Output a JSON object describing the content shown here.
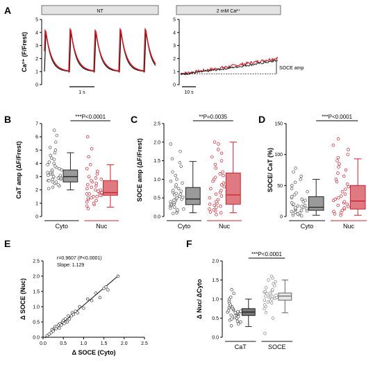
{
  "figure": {
    "panel_letters": [
      "A",
      "B",
      "C",
      "D",
      "E",
      "F"
    ]
  },
  "colors": {
    "cyto": "#666666",
    "cyto_fill": "#9a9a9a",
    "nuc": "#c8202a",
    "nuc_fill": "#e07a82",
    "soce_fill": "#e6e6e6",
    "black": "#111111"
  },
  "chart_data": [
    {
      "id": "A-left",
      "type": "line",
      "header": "NT",
      "ylabel": "Ca²⁺ (F/Frest)",
      "ylim": [
        0,
        5
      ],
      "yticks": [
        "0",
        "1",
        "2",
        "3",
        "4",
        "5"
      ],
      "scalebar": "1 s",
      "series": [
        {
          "color": "#111111",
          "peaks": [
            4.1,
            4.2,
            4.2,
            4.2
          ],
          "baseline": 1.0
        },
        {
          "color": "#c8202a",
          "peaks": [
            4.4,
            4.5,
            4.4,
            4.5
          ],
          "baseline": 1.0
        }
      ]
    },
    {
      "id": "A-right",
      "type": "line",
      "header": "2 mM Ca²⁺",
      "ylim": [
        0,
        5
      ],
      "yticks": [
        "0",
        "1",
        "2",
        "3",
        "4",
        "5"
      ],
      "scalebar": "10 s",
      "annotation": "SOCE amp",
      "series": [
        {
          "color": "#c8202a",
          "start": 0.85,
          "end": 2.05
        },
        {
          "color": "#111111",
          "start": 0.8,
          "end": 1.85
        }
      ]
    },
    {
      "id": "B",
      "type": "box",
      "ylabel": "CaT amp (ΔF/Frest)",
      "ylim": [
        0,
        7
      ],
      "yticks": [
        "0",
        "1",
        "2",
        "3",
        "4",
        "5",
        "6",
        "7"
      ],
      "categories": [
        "Cyto",
        "Nuc"
      ],
      "pvalue": "***P<0.0001",
      "boxes": [
        {
          "name": "Cyto",
          "min": 2.0,
          "q1": 2.6,
          "median": 3.0,
          "q3": 3.5,
          "max": 4.8
        },
        {
          "name": "Nuc",
          "min": 0.7,
          "q1": 1.6,
          "median": 1.8,
          "q3": 2.7,
          "max": 3.9
        }
      ],
      "points": {
        "Cyto": [
          2.1,
          2.2,
          2.3,
          2.4,
          2.5,
          2.5,
          2.6,
          2.6,
          2.7,
          2.7,
          2.8,
          2.8,
          2.9,
          2.9,
          3.0,
          3.0,
          3.0,
          3.1,
          3.1,
          3.2,
          3.2,
          3.3,
          3.3,
          3.4,
          3.5,
          3.5,
          3.6,
          3.7,
          3.8,
          3.9,
          4.0,
          4.1,
          4.3,
          4.4,
          4.6,
          4.8,
          5.0,
          5.2,
          5.6,
          6.1,
          6.5
        ],
        "Nuc": [
          0.6,
          0.8,
          0.9,
          1.0,
          1.1,
          1.2,
          1.3,
          1.4,
          1.4,
          1.5,
          1.5,
          1.6,
          1.6,
          1.7,
          1.7,
          1.8,
          1.8,
          1.9,
          1.9,
          2.0,
          2.0,
          2.1,
          2.2,
          2.3,
          2.4,
          2.5,
          2.6,
          2.7,
          2.8,
          2.9,
          3.0,
          3.2,
          3.4,
          3.6,
          3.9,
          4.5,
          5.1,
          6.0
        ]
      }
    },
    {
      "id": "C",
      "type": "box",
      "ylabel": "SOCE amp (ΔF/Frest)",
      "ylim": [
        0,
        2.5
      ],
      "yticks": [
        "0.0",
        "0.5",
        "1.0",
        "1.5",
        "2.0",
        "2.5"
      ],
      "categories": [
        "Cyto",
        "Nuc"
      ],
      "pvalue": "**P=0.0035",
      "boxes": [
        {
          "name": "Cyto",
          "min": 0.1,
          "q1": 0.32,
          "median": 0.47,
          "q3": 0.78,
          "max": 1.48
        },
        {
          "name": "Nuc",
          "min": 0.1,
          "q1": 0.33,
          "median": 0.58,
          "q3": 1.17,
          "max": 2.0
        }
      ],
      "points": {
        "Cyto": [
          0.08,
          0.1,
          0.15,
          0.18,
          0.2,
          0.22,
          0.25,
          0.28,
          0.3,
          0.32,
          0.34,
          0.36,
          0.38,
          0.4,
          0.42,
          0.44,
          0.46,
          0.48,
          0.5,
          0.52,
          0.55,
          0.58,
          0.6,
          0.62,
          0.65,
          0.68,
          0.7,
          0.75,
          0.8,
          0.85,
          0.9,
          0.95,
          1.0,
          1.1,
          1.2,
          1.35,
          1.45,
          1.55,
          1.75,
          1.95
        ],
        "Nuc": [
          0.05,
          0.1,
          0.12,
          0.15,
          0.18,
          0.2,
          0.25,
          0.28,
          0.3,
          0.33,
          0.36,
          0.4,
          0.45,
          0.5,
          0.55,
          0.6,
          0.65,
          0.7,
          0.75,
          0.8,
          0.85,
          0.9,
          0.95,
          1.0,
          1.05,
          1.1,
          1.15,
          1.2,
          1.3,
          1.4,
          1.5,
          1.6,
          1.7,
          1.8,
          1.95,
          2.0
        ]
      }
    },
    {
      "id": "D",
      "type": "box",
      "ylabel": "SOCE/ CaT (%)",
      "ylim": [
        0,
        150
      ],
      "yticks": [
        "0",
        "50",
        "100",
        "150"
      ],
      "categories": [
        "Cyto",
        "Nuc"
      ],
      "pvalue": "***P<0.0001",
      "boxes": [
        {
          "name": "Cyto",
          "min": 2,
          "q1": 10,
          "median": 15,
          "q3": 32,
          "max": 60
        },
        {
          "name": "Nuc",
          "min": 2,
          "q1": 12,
          "median": 25,
          "q3": 50,
          "max": 93
        }
      ],
      "points": {
        "Cyto": [
          1,
          2,
          3,
          4,
          5,
          6,
          7,
          8,
          9,
          10,
          11,
          12,
          13,
          14,
          15,
          16,
          17,
          18,
          19,
          20,
          22,
          24,
          26,
          28,
          30,
          32,
          35,
          38,
          40,
          45,
          50,
          55,
          60,
          65,
          72,
          78
        ],
        "Nuc": [
          2,
          4,
          6,
          8,
          10,
          12,
          14,
          16,
          18,
          20,
          22,
          24,
          26,
          28,
          30,
          33,
          36,
          40,
          44,
          48,
          52,
          56,
          60,
          65,
          70,
          75,
          80,
          85,
          90,
          95,
          100,
          108,
          115,
          125
        ]
      }
    },
    {
      "id": "E",
      "type": "scatter",
      "xlabel": "Δ SOCE (Cyto)",
      "ylabel": "Δ SOCE (Nuc)",
      "xlim": [
        0,
        2.5
      ],
      "ylim": [
        0,
        2.5
      ],
      "xticks": [
        "0.0",
        "0.5",
        "1.0",
        "1.5",
        "2.0",
        "2.5"
      ],
      "yticks": [
        "0.0",
        "0.5",
        "1.0",
        "1.5",
        "2.0",
        "2.5"
      ],
      "annotation_r": "r=0.9607 (P<0.0001)",
      "annotation_slope": "Slope: 1.129",
      "fit": {
        "slope": 1.129,
        "intercept": -0.08,
        "x0": 0.05,
        "x1": 1.85
      },
      "x": [
        0.1,
        0.15,
        0.2,
        0.22,
        0.25,
        0.28,
        0.3,
        0.32,
        0.35,
        0.38,
        0.4,
        0.42,
        0.45,
        0.48,
        0.5,
        0.52,
        0.55,
        0.6,
        0.62,
        0.65,
        0.7,
        0.72,
        0.75,
        0.8,
        0.85,
        0.9,
        1.0,
        1.1,
        1.2,
        1.3,
        1.4,
        1.5,
        1.55,
        1.6,
        1.85
      ],
      "y": [
        0.05,
        0.1,
        0.15,
        0.25,
        0.2,
        0.3,
        0.35,
        0.28,
        0.35,
        0.4,
        0.3,
        0.45,
        0.4,
        0.5,
        0.55,
        0.45,
        0.6,
        0.5,
        0.7,
        0.6,
        0.7,
        0.8,
        0.75,
        0.85,
        0.8,
        1.0,
        0.95,
        1.25,
        1.2,
        1.45,
        1.3,
        1.6,
        1.65,
        1.55,
        2.0
      ]
    },
    {
      "id": "F",
      "type": "box",
      "ylabel": "Δ Nuc/ ΔCyto",
      "ylim": [
        0,
        2.0
      ],
      "yticks": [
        "0.0",
        "0.5",
        "1.0",
        "1.5",
        "2.0"
      ],
      "categories": [
        "CaT",
        "SOCE"
      ],
      "pvalue": "***P<0.0001",
      "boxes": [
        {
          "name": "CaT",
          "min": 0.28,
          "q1": 0.57,
          "median": 0.66,
          "q3": 0.75,
          "max": 1.0
        },
        {
          "name": "SOCE",
          "min": 0.64,
          "q1": 0.97,
          "median": 1.08,
          "q3": 1.16,
          "max": 1.5
        }
      ],
      "points": {
        "CaT": [
          0.3,
          0.35,
          0.4,
          0.42,
          0.45,
          0.48,
          0.5,
          0.52,
          0.54,
          0.56,
          0.58,
          0.6,
          0.61,
          0.62,
          0.63,
          0.64,
          0.65,
          0.66,
          0.67,
          0.68,
          0.7,
          0.72,
          0.74,
          0.76,
          0.78,
          0.8,
          0.82,
          0.85,
          0.9,
          0.95,
          1.0,
          1.05,
          1.15,
          1.25
        ],
        "SOCE": [
          0.1,
          0.5,
          0.65,
          0.75,
          0.8,
          0.85,
          0.9,
          0.92,
          0.95,
          0.97,
          1.0,
          1.02,
          1.04,
          1.05,
          1.06,
          1.07,
          1.08,
          1.1,
          1.12,
          1.14,
          1.16,
          1.18,
          1.2,
          1.22,
          1.25,
          1.3,
          1.35,
          1.4,
          1.45,
          1.5,
          1.55,
          1.6
        ]
      }
    }
  ]
}
